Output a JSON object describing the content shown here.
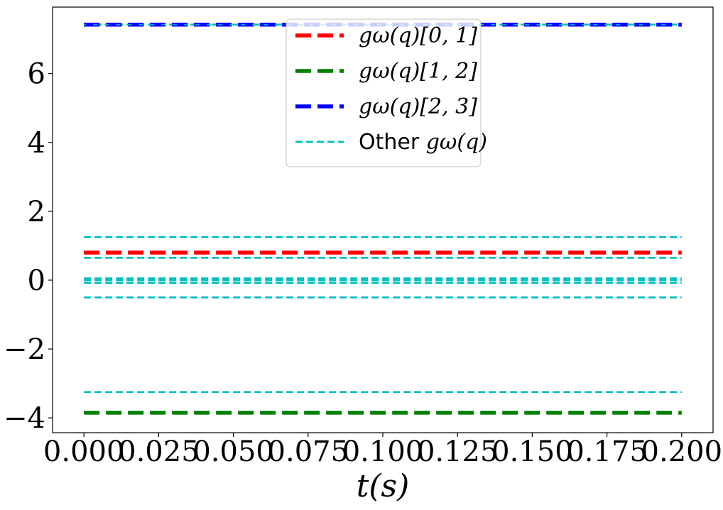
{
  "chart_data": {
    "type": "line",
    "title": "",
    "xlabel": "t(s)",
    "ylabel": "",
    "xlim": [
      -0.0105,
      0.2105
    ],
    "ylim": [
      -4.43,
      7.93
    ],
    "x_ticks": [
      0.0,
      0.025,
      0.05,
      0.075,
      0.1,
      0.125,
      0.15,
      0.175,
      0.2
    ],
    "x_tick_labels": [
      "0.000",
      "0.025",
      "0.050",
      "0.075",
      "0.100",
      "0.125",
      "0.150",
      "0.175",
      "0.200"
    ],
    "y_ticks": [
      -4,
      -2,
      0,
      2,
      4,
      6
    ],
    "y_tick_labels": [
      "−4",
      "−2",
      "0",
      "2",
      "4",
      "6"
    ],
    "grid": false,
    "legend_position": "top-center",
    "x": [
      0.0,
      0.2
    ],
    "series": [
      {
        "name": "gω(q)[0, 1]",
        "values": [
          0.8,
          0.8
        ],
        "color": "#ff0000",
        "style": "dashed-thick"
      },
      {
        "name": "gω(q)[1, 2]",
        "values": [
          -3.85,
          -3.85
        ],
        "color": "#008000",
        "style": "dashed-thick"
      },
      {
        "name": "gω(q)[2, 3]",
        "values": [
          7.42,
          7.42
        ],
        "color": "#0000ff",
        "style": "dashed-thick"
      },
      {
        "name": "Other gω(q)",
        "color": "#00bfbf",
        "style": "dashed-thin",
        "lines": [
          7.42,
          1.25,
          0.65,
          0.05,
          0.0,
          -0.08,
          -0.5,
          -3.25
        ]
      }
    ],
    "legend": [
      {
        "math": "gω(q)[0, 1]",
        "prefix": "",
        "color": "#ff0000",
        "style": "dashed-thick"
      },
      {
        "math": "gω(q)[1, 2]",
        "prefix": "",
        "color": "#008000",
        "style": "dashed-thick"
      },
      {
        "math": "gω(q)[2, 3]",
        "prefix": "",
        "color": "#0000ff",
        "style": "dashed-thick"
      },
      {
        "math": "gω(q)",
        "prefix": "Other ",
        "color": "#00bfbf",
        "style": "dashed-thin"
      }
    ]
  }
}
